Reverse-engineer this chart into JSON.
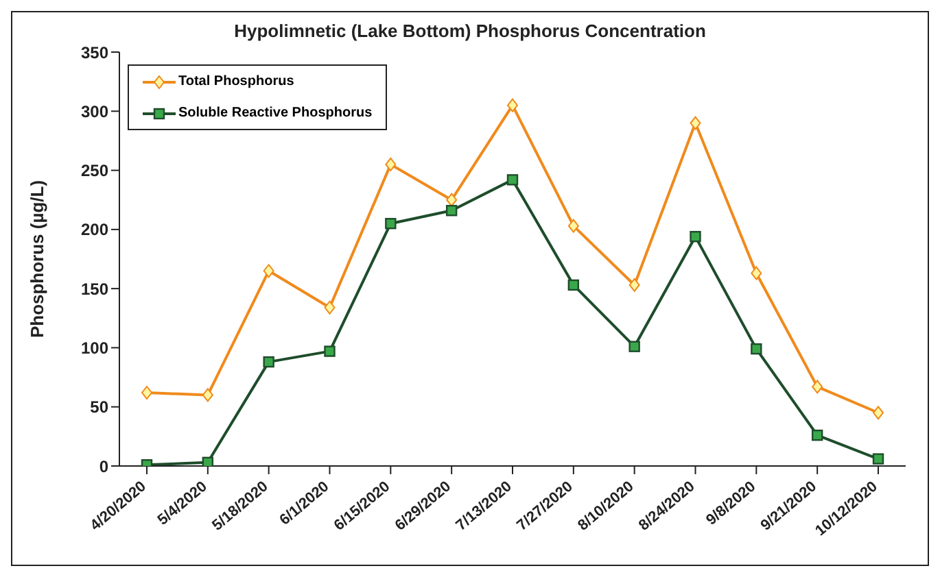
{
  "chart_data": {
    "type": "line",
    "title": "Hypolimnetic (Lake Bottom) Phosphorus Concentration",
    "ylabel": "Phosphorus (µg/L)",
    "categories": [
      "4/20/2020",
      "5/4/2020",
      "5/18/2020",
      "6/1/2020",
      "6/15/2020",
      "6/29/2020",
      "7/13/2020",
      "7/27/2020",
      "8/10/2020",
      "8/24/2020",
      "9/8/2020",
      "9/21/2020",
      "10/12/2020"
    ],
    "series": [
      {
        "name": "Total Phosphorus",
        "color": "#f08a1c",
        "marker": "diamond",
        "values": [
          62,
          60,
          165,
          134,
          255,
          225,
          305,
          203,
          153,
          290,
          163,
          67,
          45
        ]
      },
      {
        "name": "Soluble Reactive Phosphorus",
        "color": "#1e4d2b",
        "marker": "square",
        "values": [
          1,
          3,
          88,
          97,
          205,
          216,
          242,
          153,
          101,
          194,
          99,
          26,
          6
        ]
      }
    ],
    "ylim": [
      0,
      350
    ],
    "yticks": [
      0,
      50,
      100,
      150,
      200,
      250,
      300,
      350
    ],
    "grid": false,
    "legend": "top left",
    "line_style": "solid"
  }
}
